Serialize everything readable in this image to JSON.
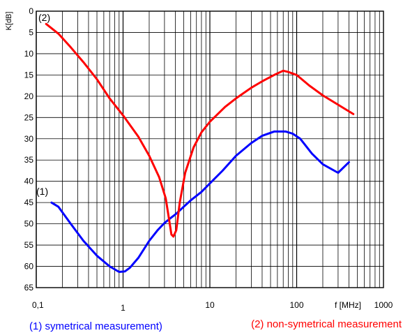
{
  "chart_data": {
    "type": "line",
    "title": "",
    "xlabel": "f [MHz]",
    "ylabel": "K[dB]",
    "x_scale": "log",
    "xlim": [
      0.1,
      1000
    ],
    "ylim": [
      0,
      65
    ],
    "y_inverted": true,
    "grid": true,
    "x_ticks": [
      {
        "value": 0.1,
        "label": "0,1"
      },
      {
        "value": 1,
        "label": "1"
      },
      {
        "value": 10,
        "label": "10"
      },
      {
        "value": 100,
        "label": "100"
      },
      {
        "value": 1000,
        "label": "1000"
      }
    ],
    "y_ticks": [
      0,
      5,
      10,
      15,
      20,
      25,
      30,
      35,
      40,
      45,
      50,
      55,
      60,
      65
    ],
    "series": [
      {
        "name": "(1) symetrical measurement)",
        "marker_label": "(1)",
        "color": "#0000ff",
        "x": [
          0.15,
          0.18,
          0.25,
          0.35,
          0.5,
          0.7,
          0.9,
          1.05,
          1.2,
          1.5,
          2.0,
          2.5,
          3.0,
          3.6,
          4.0,
          5.0,
          6.0,
          8.0,
          10,
          14,
          20,
          30,
          40,
          55,
          75,
          90,
          110,
          150,
          200,
          300,
          400
        ],
        "y": [
          45,
          46,
          50,
          54,
          57.5,
          60,
          61.3,
          61.2,
          60.3,
          58,
          54,
          51.5,
          49.8,
          48.5,
          47.8,
          46,
          44.5,
          42.5,
          40.5,
          37.5,
          34,
          31,
          29.3,
          28.3,
          28.3,
          28.8,
          30,
          33.5,
          36,
          38,
          35.5
        ]
      },
      {
        "name": "(2) non-symetrical measurement",
        "marker_label": "(2)",
        "color": "#ff0000",
        "x": [
          0.13,
          0.18,
          0.25,
          0.35,
          0.5,
          0.7,
          1.0,
          1.5,
          2.0,
          2.6,
          3.1,
          3.45,
          3.6,
          3.8,
          4.1,
          4.5,
          5.2,
          6.5,
          8,
          10,
          15,
          20,
          30,
          40,
          55,
          70,
          80,
          100,
          140,
          200,
          300,
          450
        ],
        "y": [
          3,
          5.3,
          8.5,
          12,
          16,
          20.5,
          24.5,
          29.5,
          34,
          39,
          44,
          50,
          52.5,
          53,
          51.5,
          45,
          38,
          32,
          28.5,
          26,
          22.5,
          20.5,
          18,
          16.5,
          15,
          14,
          14.3,
          15,
          17.5,
          19.8,
          22,
          24.2
        ]
      }
    ]
  }
}
